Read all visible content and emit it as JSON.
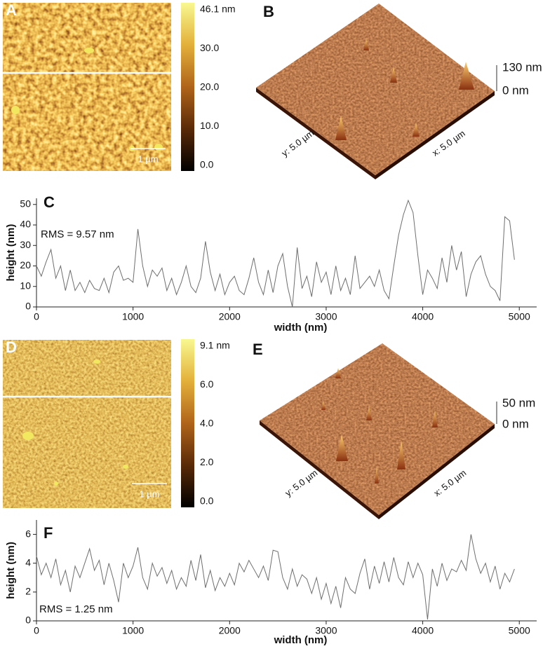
{
  "panels": [
    {
      "label": "A",
      "colorbar_ticks": [
        "46.1 nm",
        "30.0",
        "20.0",
        "10.0",
        "0.0"
      ],
      "scale_bar": "1 µm"
    },
    {
      "label": "B",
      "y_axis": "y: 5.0 µm",
      "x_axis": "x: 5.0 µm",
      "z_ticks": [
        "130 nm",
        "0 nm"
      ]
    },
    {
      "label": "D",
      "colorbar_ticks": [
        "9.1 nm",
        "6.0",
        "4.0",
        "2.0",
        "0.0"
      ],
      "scale_bar": "1 µm"
    },
    {
      "label": "E",
      "y_axis": "y: 5.0 µm",
      "x_axis": "x: 5.0 µm",
      "z_ticks": [
        "50 nm",
        "0 nm"
      ]
    }
  ],
  "chart_data": [
    {
      "type": "line",
      "label": "C",
      "annotation": "RMS = 9.57 nm",
      "x_label": "width (nm)",
      "y_label": "height (nm)",
      "color": "#6e6e6e",
      "xlim": [
        0,
        5180
      ],
      "ylim": [
        0,
        53
      ],
      "xticks": [
        0,
        1000,
        2000,
        3000,
        4000,
        5000
      ],
      "yticks": [
        0,
        10,
        20,
        30,
        40,
        50
      ],
      "x": [
        0,
        50,
        100,
        150,
        200,
        250,
        300,
        350,
        400,
        450,
        500,
        550,
        600,
        650,
        700,
        750,
        800,
        850,
        900,
        950,
        1000,
        1050,
        1100,
        1150,
        1200,
        1250,
        1300,
        1350,
        1400,
        1450,
        1500,
        1550,
        1600,
        1650,
        1700,
        1750,
        1800,
        1850,
        1900,
        1950,
        2000,
        2050,
        2100,
        2150,
        2200,
        2250,
        2300,
        2350,
        2400,
        2450,
        2500,
        2550,
        2600,
        2650,
        2700,
        2750,
        2800,
        2850,
        2900,
        2950,
        3000,
        3050,
        3100,
        3150,
        3200,
        3250,
        3300,
        3350,
        3400,
        3450,
        3500,
        3550,
        3600,
        3650,
        3700,
        3750,
        3800,
        3850,
        3900,
        3950,
        4000,
        4050,
        4100,
        4150,
        4200,
        4250,
        4300,
        4350,
        4400,
        4450,
        4500,
        4550,
        4600,
        4650,
        4700,
        4750,
        4800,
        4850,
        4900,
        4950
      ],
      "values": [
        20,
        15,
        22,
        28,
        14,
        20,
        8,
        18,
        8,
        12,
        7,
        13,
        9,
        8,
        14,
        7,
        17,
        20,
        13,
        14,
        12,
        38,
        20,
        10,
        18,
        15,
        19,
        8,
        14,
        6,
        12,
        20,
        10,
        7,
        14,
        32,
        17,
        8,
        16,
        6,
        12,
        15,
        8,
        6,
        14,
        24,
        12,
        6,
        18,
        7,
        20,
        26,
        10,
        0,
        29,
        9,
        15,
        5,
        22,
        12,
        17,
        6,
        20,
        8,
        14,
        6,
        25,
        9,
        12,
        15,
        10,
        18,
        8,
        4,
        20,
        35,
        45,
        52,
        46,
        25,
        6,
        18,
        14,
        9,
        24,
        12,
        30,
        18,
        27,
        5,
        16,
        22,
        25,
        16,
        10,
        8,
        3,
        44,
        42,
        23
      ]
    },
    {
      "type": "line",
      "label": "F",
      "annotation": "RMS = 1.25 nm",
      "x_label": "width (nm)",
      "y_label": "height (nm)",
      "color": "#6e6e6e",
      "xlim": [
        0,
        5180
      ],
      "ylim": [
        0,
        7
      ],
      "xticks": [
        0,
        1000,
        2000,
        3000,
        4000,
        5000
      ],
      "yticks": [
        0,
        2,
        4,
        6
      ],
      "x": [
        0,
        50,
        100,
        150,
        200,
        250,
        300,
        350,
        400,
        450,
        500,
        550,
        600,
        650,
        700,
        750,
        800,
        850,
        900,
        950,
        1000,
        1050,
        1100,
        1150,
        1200,
        1250,
        1300,
        1350,
        1400,
        1450,
        1500,
        1550,
        1600,
        1650,
        1700,
        1750,
        1800,
        1850,
        1900,
        1950,
        2000,
        2050,
        2100,
        2150,
        2200,
        2250,
        2300,
        2350,
        2400,
        2450,
        2500,
        2550,
        2600,
        2650,
        2700,
        2750,
        2800,
        2850,
        2900,
        2950,
        3000,
        3050,
        3100,
        3150,
        3200,
        3250,
        3300,
        3350,
        3400,
        3450,
        3500,
        3550,
        3600,
        3650,
        3700,
        3750,
        3800,
        3850,
        3900,
        3950,
        4000,
        4050,
        4100,
        4150,
        4200,
        4250,
        4300,
        4350,
        4400,
        4450,
        4500,
        4550,
        4600,
        4650,
        4700,
        4750,
        4800,
        4850,
        4900,
        4950
      ],
      "values": [
        4.5,
        3.2,
        4,
        3,
        4.3,
        2.5,
        3.5,
        2,
        3.8,
        3,
        4,
        5,
        3.5,
        4.2,
        2.5,
        4,
        2.8,
        1.3,
        4,
        3,
        3.8,
        5.1,
        3,
        2.2,
        4,
        3.1,
        3.7,
        2.6,
        3.5,
        2.2,
        3,
        2.4,
        4.2,
        2.8,
        4.6,
        2.3,
        3.5,
        2.1,
        3,
        2.4,
        3.3,
        2.5,
        4,
        3.4,
        4.2,
        3.6,
        3,
        3.8,
        2.8,
        4.9,
        4.8,
        3,
        2.2,
        3.6,
        2.4,
        3.2,
        2.9,
        1.9,
        3,
        1.5,
        2.6,
        1.2,
        2.4,
        0.9,
        3,
        2.2,
        1.9,
        3.3,
        4.3,
        2.2,
        3.8,
        2.6,
        4.1,
        2.7,
        4.4,
        3,
        2.5,
        4.1,
        3,
        4,
        3.2,
        0.1,
        3.6,
        2.4,
        4,
        2.8,
        3.6,
        3.4,
        4.2,
        3.5,
        6,
        4.3,
        3.3,
        4,
        2.7,
        3.8,
        2.2,
        3.3,
        2.7,
        3.6
      ]
    }
  ]
}
